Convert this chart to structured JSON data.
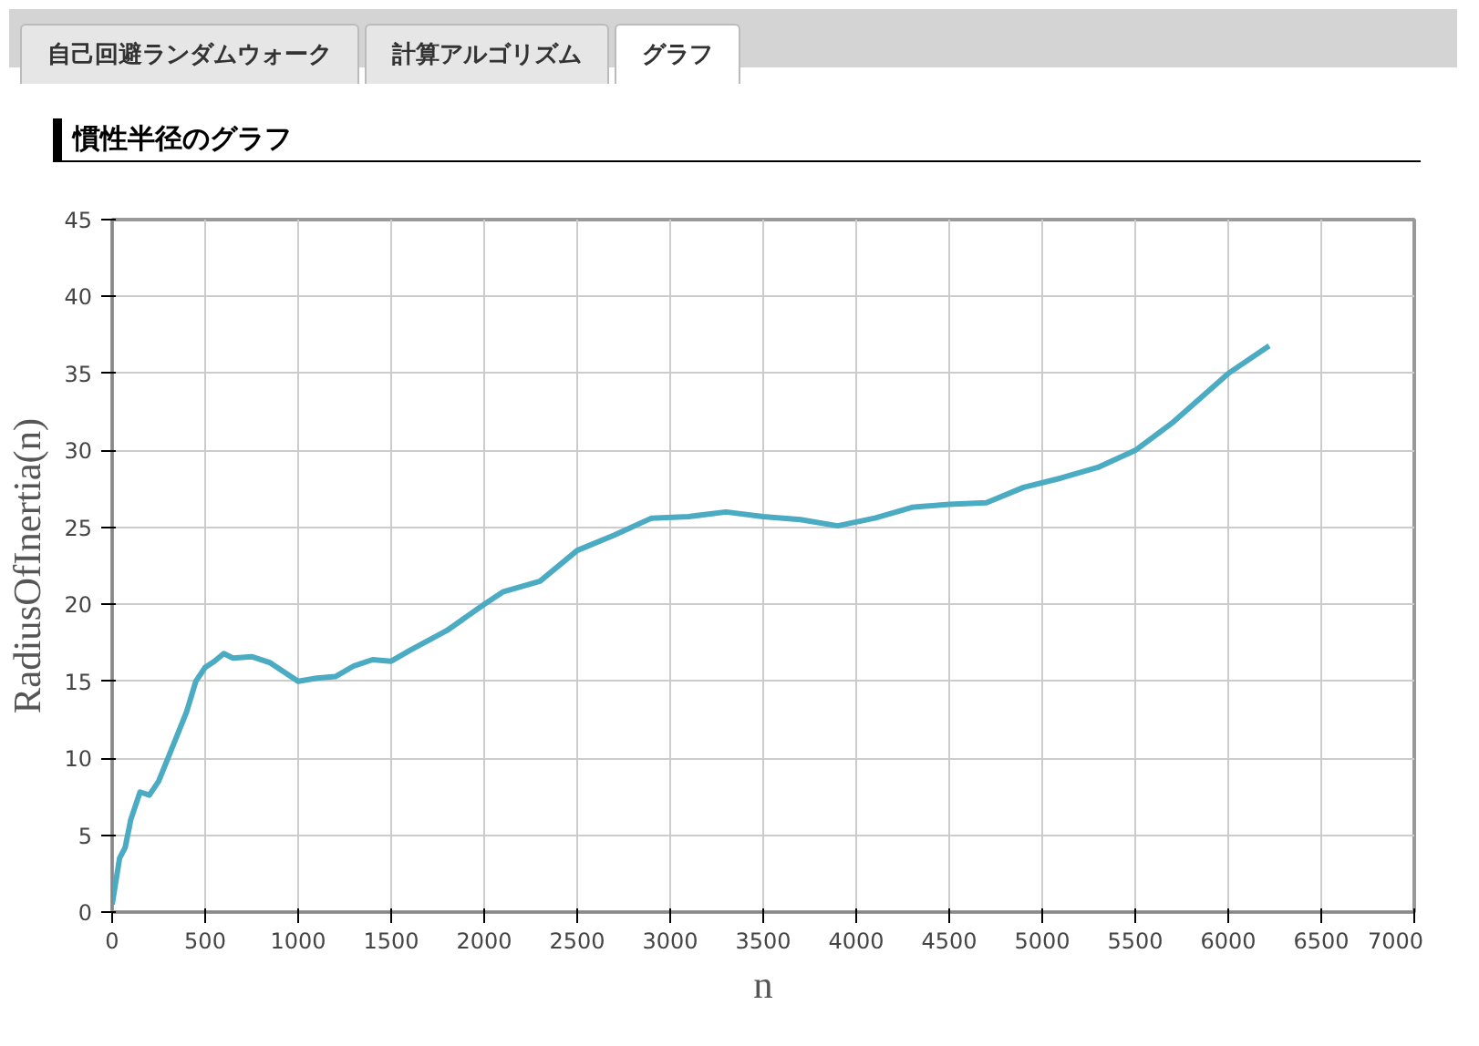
{
  "chart_data": {
    "type": "line",
    "title": "慣性半径のグラフ",
    "xlabel": "n",
    "ylabel": "RadiusOfInertia(n)",
    "annotations": [
      "自己回避ランダムウォーク",
      "計算アルゴリズム",
      "グラフ"
    ],
    "x": [
      0,
      20,
      40,
      70,
      100,
      150,
      200,
      250,
      300,
      400,
      450,
      500,
      550,
      600,
      650,
      750,
      850,
      1000,
      1100,
      1200,
      1300,
      1400,
      1500,
      1600,
      1800,
      2000,
      2100,
      2300,
      2500,
      2700,
      2900,
      3100,
      3300,
      3500,
      3700,
      3900,
      4100,
      4300,
      4500,
      4700,
      4900,
      5100,
      5300,
      5500,
      5700,
      6000,
      6220
    ],
    "series": [
      {
        "color": "#4aabc3",
        "values": [
          0.5,
          2,
          3.5,
          4.2,
          6,
          7.8,
          7.6,
          8.5,
          10,
          13,
          15,
          15.9,
          16.3,
          16.8,
          16.5,
          16.6,
          16.2,
          15,
          15.2,
          15.3,
          16,
          16.4,
          16.3,
          17,
          18.3,
          20,
          20.8,
          21.5,
          23.5,
          24.5,
          25.6,
          25.7,
          26,
          25.7,
          25.5,
          25.1,
          25.6,
          26.3,
          26.5,
          26.6,
          27.6,
          28.2,
          28.9,
          30,
          31.8,
          35,
          36.8
        ]
      }
    ],
    "xlim": [
      0,
      7000
    ],
    "xticks": [
      0,
      500,
      1000,
      1500,
      2000,
      2500,
      3000,
      3500,
      4000,
      4500,
      5000,
      5500,
      6000,
      6500,
      7000
    ],
    "ylim": [
      0,
      45
    ],
    "yticks": [
      0,
      5,
      10,
      15,
      20,
      25,
      30,
      35,
      40,
      45
    ],
    "grid": true,
    "marker": "none",
    "line_style": "solid"
  }
}
